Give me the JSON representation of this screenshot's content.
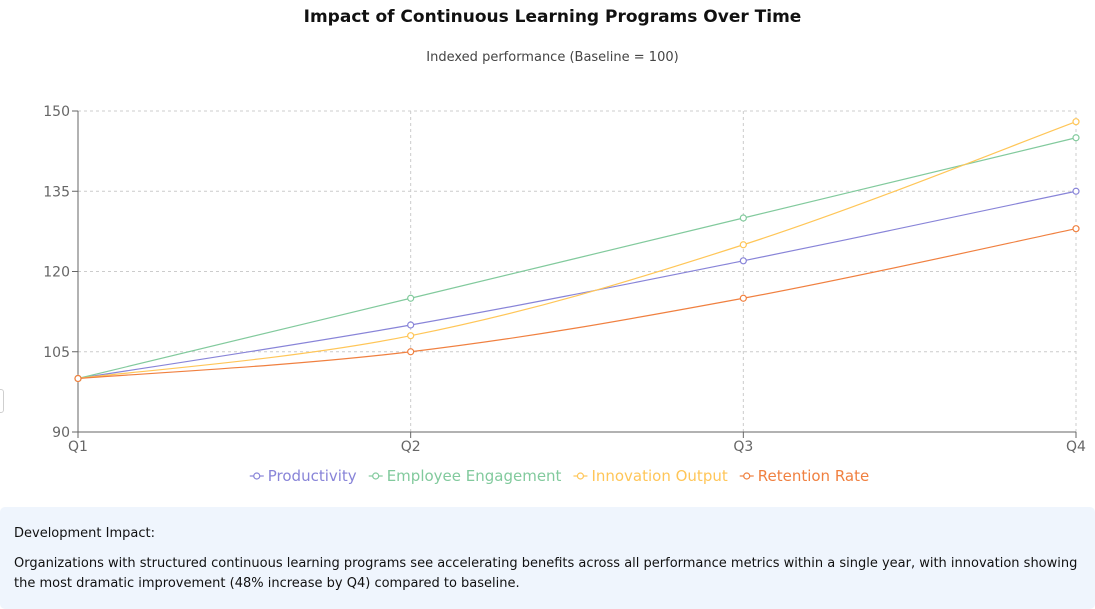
{
  "chart_data": {
    "type": "line",
    "title": "Impact of Continuous Learning Programs Over Time",
    "subtitle": "Indexed performance (Baseline = 100)",
    "categories": [
      "Q1",
      "Q2",
      "Q3",
      "Q4"
    ],
    "ylim": [
      90,
      150
    ],
    "yticks": [
      90,
      105,
      120,
      135,
      150
    ],
    "grid": true,
    "legend_position": "bottom",
    "series": [
      {
        "name": "Productivity",
        "color": "#8884d8",
        "values": [
          100,
          110,
          122,
          135
        ]
      },
      {
        "name": "Employee Engagement",
        "color": "#82ca9d",
        "values": [
          100,
          115,
          130,
          145
        ]
      },
      {
        "name": "Innovation Output",
        "color": "#ffc658",
        "values": [
          100,
          108,
          125,
          148
        ]
      },
      {
        "name": "Retention Rate",
        "color": "#f08040",
        "values": [
          100,
          105,
          115,
          128
        ]
      }
    ]
  },
  "impact": {
    "title": "Development Impact:",
    "text": "Organizations with structured continuous learning programs see accelerating benefits across all performance metrics within a single year, with innovation showing the most dramatic improvement (48% increase by Q4) compared to baseline."
  }
}
